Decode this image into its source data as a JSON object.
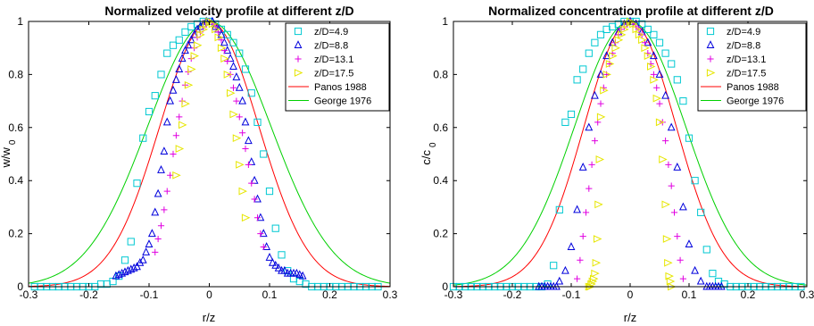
{
  "chart_data": [
    {
      "type": "scatter",
      "title": "Normalized velocity profile at different z/D",
      "xlabel": "r/z",
      "ylabel_main": "w/w",
      "ylabel_sub": "0",
      "xlim": [
        -0.3,
        0.3
      ],
      "ylim": [
        0,
        1
      ],
      "x_ticks": [
        "-0.3",
        "-0.2",
        "-0.1",
        "0",
        "0.1",
        "0.2",
        "0.3"
      ],
      "y_ticks": [
        "0",
        "0.2",
        "0.4",
        "0.6",
        "0.8",
        "1"
      ],
      "legend_position": "top-right",
      "colors": {
        "s1": "#00c8d2",
        "s2": "#0000dc",
        "s3": "#e000e0",
        "s4": "#e6e600",
        "c1": "#ff0000",
        "c2": "#00d000"
      },
      "series": [
        {
          "name": "z/D=4.9",
          "marker": "square",
          "x": [
            -0.29,
            -0.28,
            -0.27,
            -0.26,
            -0.25,
            -0.24,
            -0.23,
            -0.22,
            -0.21,
            -0.2,
            -0.19,
            -0.18,
            -0.17,
            -0.16,
            -0.15,
            -0.14,
            -0.13,
            -0.12,
            -0.11,
            -0.1,
            -0.09,
            -0.08,
            -0.07,
            -0.06,
            -0.05,
            -0.04,
            -0.03,
            -0.02,
            -0.01,
            0,
            0.01,
            0.02,
            0.03,
            0.04,
            0.05,
            0.06,
            0.07,
            0.08,
            0.09,
            0.1,
            0.11,
            0.12,
            0.13,
            0.14,
            0.15,
            0.16,
            0.17,
            0.18,
            0.19,
            0.2,
            0.21,
            0.22,
            0.23,
            0.24,
            0.25,
            0.26,
            0.27,
            0.28
          ],
          "y": [
            0.0,
            0.0,
            0.0,
            0.0,
            0.0,
            0.0,
            0.0,
            0.0,
            0.0,
            0.0,
            0.0,
            0.01,
            0.01,
            0.02,
            0.04,
            0.1,
            0.17,
            0.39,
            0.56,
            0.66,
            0.72,
            0.8,
            0.88,
            0.91,
            0.93,
            0.96,
            0.98,
            0.99,
            1.0,
            1.0,
            0.99,
            0.97,
            0.95,
            0.92,
            0.88,
            0.82,
            0.73,
            0.62,
            0.5,
            0.36,
            0.22,
            0.12,
            0.06,
            0.03,
            0.02,
            0.01,
            0.0,
            0.0,
            0.0,
            0.0,
            0.0,
            0.0,
            0.0,
            0.0,
            0.0,
            0.0,
            0.0,
            0.0
          ]
        },
        {
          "name": "z/D=8.8",
          "marker": "triangle",
          "x": [
            -0.155,
            -0.15,
            -0.145,
            -0.14,
            -0.135,
            -0.13,
            -0.125,
            -0.12,
            -0.115,
            -0.11,
            -0.105,
            -0.1,
            -0.095,
            -0.09,
            -0.085,
            -0.08,
            -0.075,
            -0.07,
            -0.065,
            -0.06,
            -0.055,
            -0.05,
            -0.045,
            -0.04,
            -0.035,
            -0.03,
            -0.025,
            -0.02,
            -0.015,
            -0.01,
            -0.005,
            0.005,
            0.01,
            0.015,
            0.02,
            0.025,
            0.03,
            0.035,
            0.04,
            0.045,
            0.05,
            0.055,
            0.06,
            0.065,
            0.07,
            0.075,
            0.08,
            0.085,
            0.09,
            0.095,
            0.1,
            0.105,
            0.11,
            0.115,
            0.12,
            0.125,
            0.13,
            0.135,
            0.14,
            0.145,
            0.15,
            0.155
          ],
          "y": [
            0.04,
            0.045,
            0.05,
            0.055,
            0.06,
            0.065,
            0.07,
            0.075,
            0.09,
            0.1,
            0.13,
            0.16,
            0.2,
            0.28,
            0.35,
            0.44,
            0.51,
            0.62,
            0.7,
            0.74,
            0.78,
            0.82,
            0.86,
            0.89,
            0.91,
            0.93,
            0.95,
            0.97,
            0.98,
            0.99,
            1.0,
            1.0,
            0.98,
            0.97,
            0.95,
            0.92,
            0.89,
            0.86,
            0.83,
            0.79,
            0.75,
            0.7,
            0.62,
            0.55,
            0.47,
            0.4,
            0.33,
            0.26,
            0.2,
            0.15,
            0.11,
            0.09,
            0.08,
            0.07,
            0.06,
            0.06,
            0.05,
            0.05,
            0.05,
            0.05,
            0.045,
            0.04
          ]
        },
        {
          "name": "z/D=13.1",
          "marker": "plus",
          "x": [
            -0.09,
            -0.085,
            -0.08,
            -0.075,
            -0.07,
            -0.065,
            -0.06,
            -0.055,
            -0.05,
            -0.045,
            -0.04,
            -0.035,
            -0.03,
            -0.025,
            -0.02,
            -0.015,
            -0.01,
            -0.005,
            0,
            0.005,
            0.01,
            0.015,
            0.02,
            0.025,
            0.03,
            0.035,
            0.04,
            0.045,
            0.05,
            0.055,
            0.06,
            0.065,
            0.07,
            0.075,
            0.08,
            0.085,
            0.09
          ],
          "y": [
            0.13,
            0.18,
            0.23,
            0.29,
            0.36,
            0.42,
            0.5,
            0.57,
            0.64,
            0.7,
            0.76,
            0.81,
            0.86,
            0.9,
            0.94,
            0.96,
            0.98,
            0.99,
            1.0,
            0.99,
            0.98,
            0.96,
            0.93,
            0.89,
            0.85,
            0.8,
            0.75,
            0.7,
            0.64,
            0.58,
            0.52,
            0.46,
            0.39,
            0.33,
            0.26,
            0.2,
            0.15
          ]
        },
        {
          "name": "z/D=17.5",
          "marker": "triangle-right",
          "x": [
            -0.055,
            -0.05,
            -0.045,
            -0.04,
            -0.035,
            -0.03,
            -0.025,
            -0.02,
            -0.015,
            -0.01,
            -0.005,
            0,
            0.005,
            0.01,
            0.015,
            0.02,
            0.025,
            0.03,
            0.035,
            0.04,
            0.045,
            0.05,
            0.055,
            0.06
          ],
          "y": [
            0.42,
            0.52,
            0.61,
            0.69,
            0.76,
            0.82,
            0.87,
            0.91,
            0.95,
            0.97,
            0.99,
            1.0,
            0.99,
            0.97,
            0.94,
            0.9,
            0.86,
            0.8,
            0.73,
            0.65,
            0.56,
            0.46,
            0.36,
            0.26
          ]
        },
        {
          "name": "Panos 1988",
          "marker": "line",
          "sigma": 0.082
        },
        {
          "name": "George 1976",
          "marker": "line",
          "sigma": 0.102
        }
      ]
    },
    {
      "type": "scatter",
      "title": "Normalized concentration profile at different z/D",
      "xlabel": "r/z",
      "ylabel_main": "c/c",
      "ylabel_sub": "0",
      "xlim": [
        -0.3,
        0.3
      ],
      "ylim": [
        0,
        1
      ],
      "x_ticks": [
        "-0.3",
        "-0.2",
        "-0.1",
        "0",
        "0.1",
        "0.2",
        "0.3"
      ],
      "y_ticks": [
        "0",
        "0.2",
        "0.4",
        "0.6",
        "0.8",
        "1"
      ],
      "legend_position": "top-right",
      "series": [
        {
          "name": "z/D=4.9",
          "marker": "square",
          "x": [
            -0.3,
            -0.29,
            -0.28,
            -0.27,
            -0.26,
            -0.25,
            -0.24,
            -0.23,
            -0.22,
            -0.21,
            -0.2,
            -0.19,
            -0.18,
            -0.17,
            -0.16,
            -0.15,
            -0.14,
            -0.13,
            -0.12,
            -0.11,
            -0.1,
            -0.09,
            -0.08,
            -0.07,
            -0.06,
            -0.05,
            -0.04,
            -0.03,
            -0.02,
            -0.01,
            0,
            0.01,
            0.02,
            0.03,
            0.04,
            0.05,
            0.06,
            0.07,
            0.08,
            0.09,
            0.1,
            0.11,
            0.12,
            0.13,
            0.14,
            0.15,
            0.16,
            0.17,
            0.18,
            0.19,
            0.2,
            0.21,
            0.22,
            0.23,
            0.24,
            0.25,
            0.26,
            0.27,
            0.28,
            0.29
          ],
          "y": [
            0.0,
            0.0,
            0.0,
            0.0,
            0.0,
            0.0,
            0.0,
            0.0,
            0.0,
            0.0,
            0.0,
            0.0,
            0.0,
            0.0,
            0.0,
            0.0,
            0.01,
            0.08,
            0.29,
            0.62,
            0.65,
            0.78,
            0.82,
            0.88,
            0.92,
            0.95,
            0.97,
            0.98,
            0.99,
            1.0,
            1.0,
            1.0,
            0.99,
            0.97,
            0.95,
            0.92,
            0.88,
            0.84,
            0.78,
            0.7,
            0.56,
            0.4,
            0.28,
            0.14,
            0.05,
            0.02,
            0.01,
            0.0,
            0.0,
            0.0,
            0.0,
            0.0,
            0.0,
            0.0,
            0.0,
            0.0,
            0.0,
            0.0,
            0.0,
            0.0
          ]
        },
        {
          "name": "z/D=8.8",
          "marker": "triangle",
          "x": [
            -0.155,
            -0.15,
            -0.145,
            -0.14,
            -0.135,
            -0.13,
            -0.125,
            -0.12,
            -0.11,
            -0.1,
            -0.09,
            -0.08,
            -0.07,
            -0.06,
            -0.05,
            -0.04,
            -0.03,
            -0.02,
            -0.01,
            0,
            0.01,
            0.02,
            0.03,
            0.04,
            0.05,
            0.06,
            0.07,
            0.08,
            0.09,
            0.1,
            0.11,
            0.12,
            0.13,
            0.135,
            0.14,
            0.145,
            0.15,
            0.155
          ],
          "y": [
            0.0,
            0.0,
            0.0,
            0.0,
            0.0,
            0.0,
            0.0,
            0.02,
            0.06,
            0.15,
            0.29,
            0.45,
            0.6,
            0.72,
            0.8,
            0.87,
            0.92,
            0.96,
            0.99,
            1.0,
            0.99,
            0.96,
            0.92,
            0.87,
            0.8,
            0.72,
            0.6,
            0.45,
            0.3,
            0.16,
            0.06,
            0.02,
            0.0,
            0.0,
            0.0,
            0.0,
            0.0,
            0.0
          ]
        },
        {
          "name": "z/D=13.1",
          "marker": "plus",
          "x": [
            -0.09,
            -0.085,
            -0.08,
            -0.075,
            -0.07,
            -0.065,
            -0.06,
            -0.055,
            -0.05,
            -0.045,
            -0.04,
            -0.035,
            -0.03,
            -0.025,
            -0.02,
            -0.015,
            -0.01,
            -0.005,
            0,
            0.005,
            0.01,
            0.015,
            0.02,
            0.025,
            0.03,
            0.035,
            0.04,
            0.045,
            0.05,
            0.055,
            0.06,
            0.065,
            0.07,
            0.075,
            0.08,
            0.085,
            0.09
          ],
          "y": [
            0.03,
            0.1,
            0.19,
            0.28,
            0.37,
            0.46,
            0.55,
            0.62,
            0.69,
            0.75,
            0.8,
            0.84,
            0.88,
            0.92,
            0.95,
            0.97,
            0.98,
            0.99,
            1.0,
            0.99,
            0.98,
            0.97,
            0.95,
            0.92,
            0.88,
            0.84,
            0.8,
            0.75,
            0.69,
            0.62,
            0.55,
            0.46,
            0.38,
            0.28,
            0.19,
            0.1,
            0.03
          ]
        },
        {
          "name": "z/D=17.5",
          "marker": "triangle-right",
          "x": [
            -0.07,
            -0.068,
            -0.066,
            -0.064,
            -0.062,
            -0.06,
            -0.058,
            -0.056,
            -0.054,
            -0.052,
            -0.05,
            -0.045,
            -0.04,
            -0.035,
            -0.03,
            -0.025,
            -0.02,
            -0.015,
            -0.01,
            -0.005,
            0,
            0.005,
            0.01,
            0.015,
            0.02,
            0.025,
            0.03,
            0.035,
            0.04,
            0.045,
            0.05,
            0.055,
            0.06,
            0.062,
            0.064,
            0.066,
            0.068,
            0.07
          ],
          "y": [
            0.0,
            0.0,
            0.01,
            0.02,
            0.03,
            0.05,
            0.09,
            0.18,
            0.31,
            0.48,
            0.64,
            0.74,
            0.8,
            0.84,
            0.87,
            0.9,
            0.93,
            0.95,
            0.97,
            0.99,
            1.0,
            0.99,
            0.97,
            0.95,
            0.93,
            0.9,
            0.87,
            0.83,
            0.78,
            0.71,
            0.62,
            0.48,
            0.31,
            0.18,
            0.09,
            0.04,
            0.02,
            0.0
          ]
        },
        {
          "name": "Panos 1988",
          "marker": "line",
          "sigma": 0.078
        },
        {
          "name": "George 1976",
          "marker": "line",
          "sigma": 0.094
        }
      ]
    }
  ]
}
